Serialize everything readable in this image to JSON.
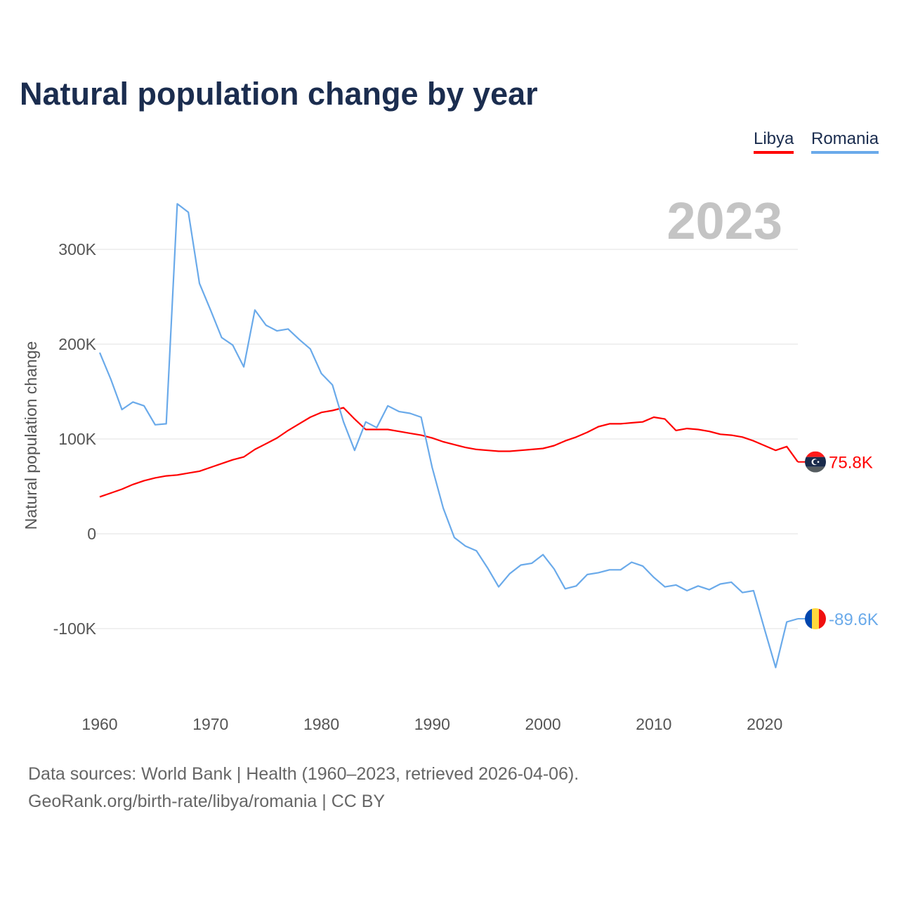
{
  "chart_data": {
    "type": "line",
    "title": "Natural population change by year",
    "ylabel": "Natural population change",
    "xlabel": "",
    "year_badge": "2023",
    "x": [
      1960,
      1961,
      1962,
      1963,
      1964,
      1965,
      1966,
      1967,
      1968,
      1969,
      1970,
      1971,
      1972,
      1973,
      1974,
      1975,
      1976,
      1977,
      1978,
      1979,
      1980,
      1981,
      1982,
      1983,
      1984,
      1985,
      1986,
      1987,
      1988,
      1989,
      1990,
      1991,
      1992,
      1993,
      1994,
      1995,
      1996,
      1997,
      1998,
      1999,
      2000,
      2001,
      2002,
      2003,
      2004,
      2005,
      2006,
      2007,
      2008,
      2009,
      2010,
      2011,
      2012,
      2013,
      2014,
      2015,
      2016,
      2017,
      2018,
      2019,
      2020,
      2021,
      2022,
      2023
    ],
    "xlim": [
      1960,
      2023
    ],
    "ylim": [
      -175000,
      360000
    ],
    "x_ticks": [
      1960,
      1970,
      1980,
      1990,
      2000,
      2010,
      2020
    ],
    "x_tick_labels": [
      "1960",
      "1970",
      "1980",
      "1990",
      "2000",
      "2010",
      "2020"
    ],
    "y_ticks": [
      -100000,
      0,
      100000,
      200000,
      300000
    ],
    "y_tick_labels": [
      "-100K",
      "0",
      "100K",
      "200K",
      "300K"
    ],
    "grid": true,
    "legend_position": "top-right",
    "series": [
      {
        "name": "Libya",
        "color": "#ff0000",
        "end_label": "75.8K",
        "flag": "libya-flag",
        "values": [
          39000,
          43000,
          47000,
          52000,
          56000,
          59000,
          61000,
          62000,
          64000,
          66000,
          70000,
          74000,
          78000,
          81000,
          89000,
          95000,
          101000,
          109000,
          116000,
          123000,
          128000,
          130000,
          133000,
          121000,
          110000,
          110000,
          110000,
          108000,
          106000,
          104000,
          101000,
          97000,
          94000,
          91000,
          89000,
          88000,
          87000,
          87000,
          88000,
          89000,
          90000,
          93000,
          98000,
          102000,
          107000,
          113000,
          116000,
          116000,
          117000,
          118000,
          123000,
          121000,
          109000,
          111000,
          110000,
          108000,
          105000,
          104000,
          102000,
          98000,
          93000,
          88000,
          92000,
          75800
        ]
      },
      {
        "name": "Romania",
        "color": "#6aaaea",
        "end_label": "-89.6K",
        "flag": "romania-flag",
        "values": [
          191000,
          163000,
          131000,
          139000,
          135000,
          115000,
          116000,
          348000,
          339000,
          264000,
          236000,
          207000,
          199000,
          176000,
          236000,
          220000,
          214000,
          216000,
          205000,
          195000,
          169000,
          157000,
          118000,
          88000,
          118000,
          112000,
          135000,
          129000,
          127000,
          123000,
          70000,
          27000,
          -4000,
          -13000,
          -18000,
          -36000,
          -56000,
          -42000,
          -33000,
          -31000,
          -22000,
          -37000,
          -58000,
          -55000,
          -43000,
          -41000,
          -38000,
          -38000,
          -30000,
          -34000,
          -46000,
          -56000,
          -54000,
          -60000,
          -55000,
          -59000,
          -53000,
          -51000,
          -62000,
          -60000,
          -101000,
          -141000,
          -93000,
          -89600
        ]
      }
    ]
  },
  "footer": {
    "line1": "Data sources: World Bank | Health (1960–2023, retrieved 2026-04-06).",
    "line2": "GeoRank.org/birth-rate/libya/romania | CC BY"
  }
}
